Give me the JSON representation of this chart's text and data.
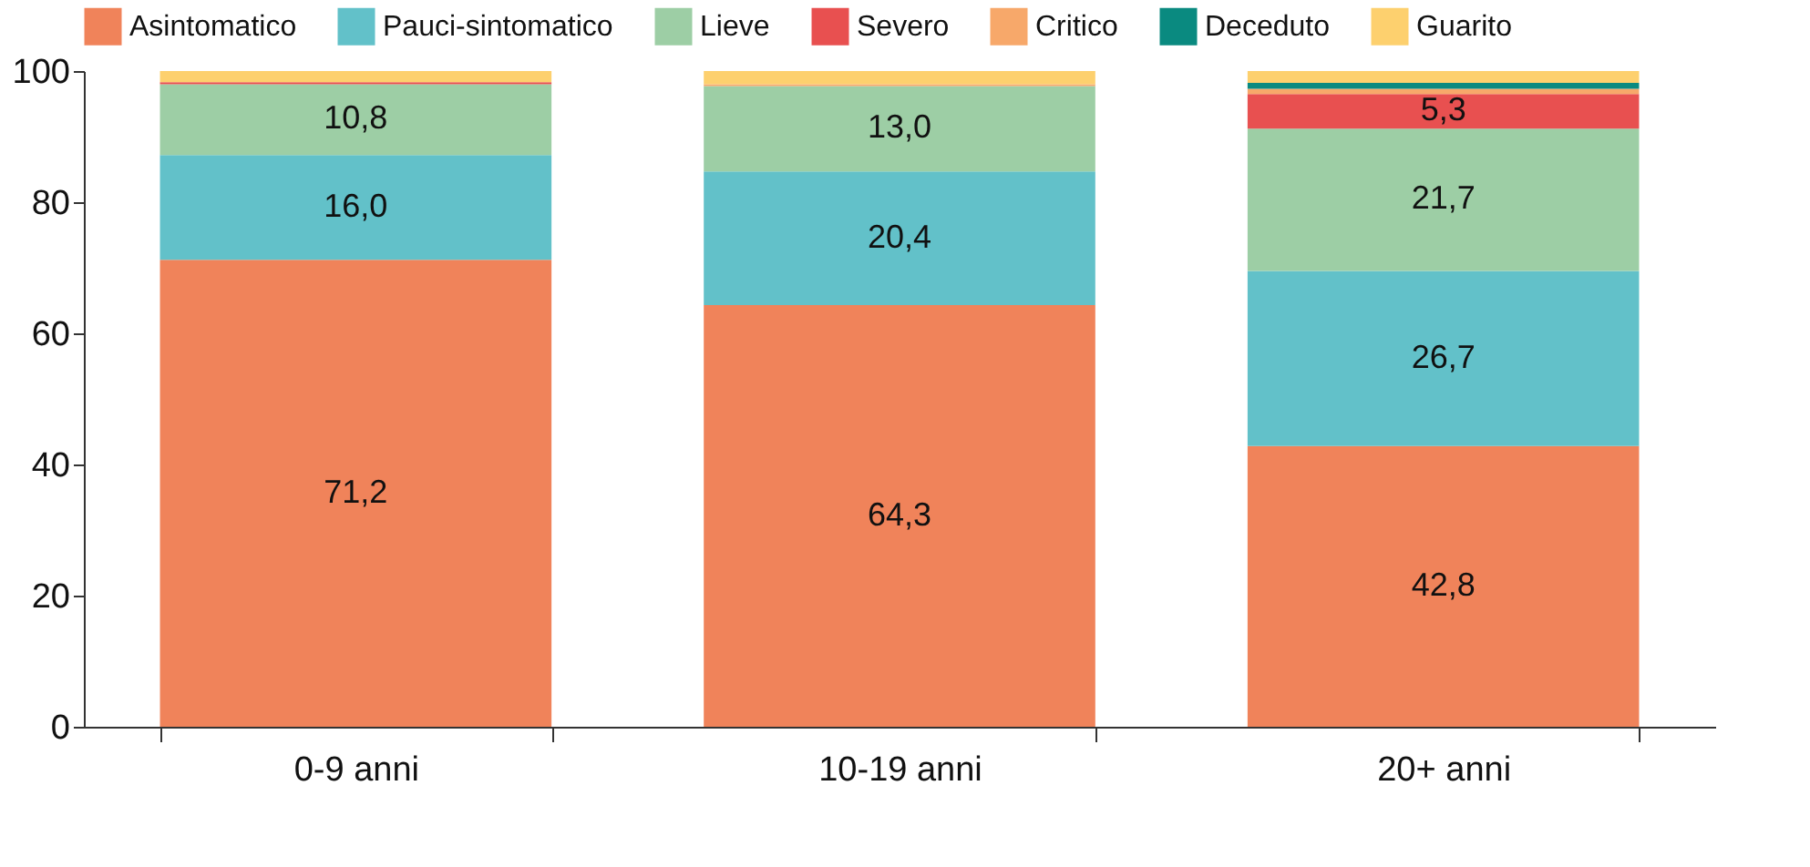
{
  "chart_data": {
    "type": "bar",
    "stacked": true,
    "categories": [
      "0-9 anni",
      "10-19 anni",
      "20+ anni"
    ],
    "series": [
      {
        "name": "Asintomatico",
        "color": "#f0835a",
        "values": [
          71.2,
          64.3,
          42.8
        ],
        "value_labels": [
          "71,2",
          "64,3",
          "42,8"
        ]
      },
      {
        "name": "Pauci-sintomatico",
        "color": "#62c1c9",
        "values": [
          16.0,
          20.4,
          26.7
        ],
        "value_labels": [
          "16,0",
          "20,4",
          "26,7"
        ]
      },
      {
        "name": "Lieve",
        "color": "#9dcea5",
        "values": [
          10.8,
          13.0,
          21.7
        ],
        "value_labels": [
          "10,8",
          "13,0",
          "21,7"
        ]
      },
      {
        "name": "Severo",
        "color": "#e85050",
        "values": [
          0.3,
          0,
          5.3
        ],
        "value_labels": [
          null,
          null,
          "5,3"
        ]
      },
      {
        "name": "Critico",
        "color": "#f7a86a",
        "values": [
          0,
          0.3,
          0.8
        ]
      },
      {
        "name": "Deceduto",
        "color": "#0a8a80",
        "values": [
          0,
          0,
          0.9
        ]
      },
      {
        "name": "Guarito",
        "color": "#fdd06e",
        "values": [
          1.7,
          2.0,
          1.8
        ]
      }
    ],
    "ylim": [
      0,
      100
    ],
    "yticks": [
      0,
      20,
      40,
      60,
      80,
      100
    ],
    "grid": false,
    "legend": "top"
  }
}
